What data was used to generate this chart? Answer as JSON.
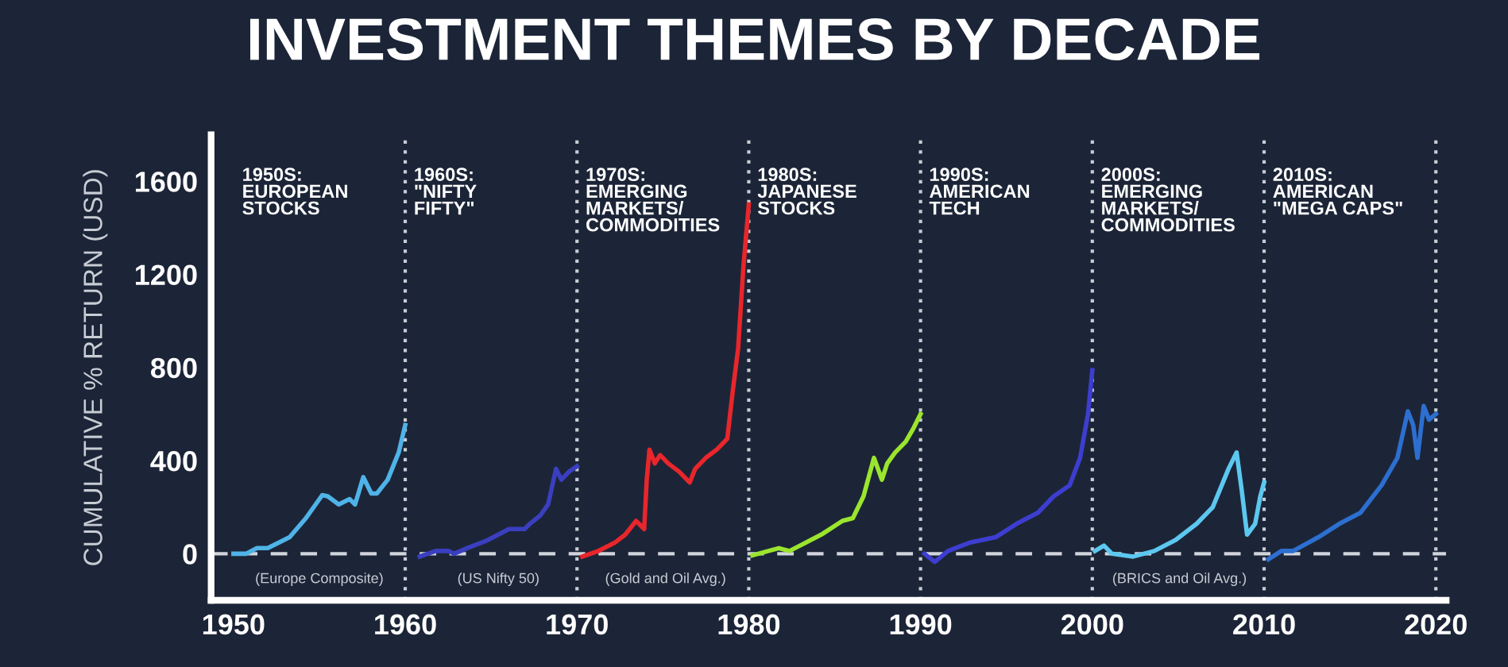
{
  "chart_data": {
    "type": "line",
    "title": "INVESTMENT THEMES BY DECADE",
    "ylabel": "CUMULATIVE % RETURN (USD)",
    "xlim": [
      1948.7,
      2020.6
    ],
    "ylim": [
      -200,
      1800
    ],
    "xticks": [
      1950,
      1960,
      1970,
      1980,
      1990,
      2000,
      2010,
      2020
    ],
    "yticks": [
      0,
      400,
      800,
      1200,
      1600
    ],
    "grid": false,
    "line_style": "solid",
    "marker": "none",
    "series": [
      {
        "name": "(Europe Composite)",
        "color": "#4fb3e8",
        "x": [
          1950,
          1950.73,
          1951.37,
          1952.0,
          1953.27,
          1954.22,
          1955.17,
          1955.49,
          1956.13,
          1956.76,
          1957.08,
          1957.56,
          1958.03,
          1958.35,
          1958.98,
          1959.62,
          1960
        ],
        "values": [
          0,
          0,
          24,
          24,
          71,
          153,
          252,
          247,
          212,
          235,
          212,
          329,
          259,
          259,
          318,
          435,
          553
        ]
      },
      {
        "name": "(US Nifty 50)",
        "color": "#3a3fc0",
        "x": [
          1960.85,
          1961.77,
          1962.53,
          1962.84,
          1963.6,
          1964.82,
          1966.04,
          1966.95,
          1967.26,
          1967.87,
          1968.32,
          1968.78,
          1969.09,
          1969.54,
          1970
        ],
        "values": [
          -12,
          12,
          12,
          0,
          24,
          59,
          106,
          106,
          129,
          165,
          212,
          365,
          318,
          353,
          376
        ]
      },
      {
        "name": "(Gold and Oil Avg.)",
        "color": "#e8262b",
        "x": [
          1970.31,
          1971.25,
          1972.19,
          1972.81,
          1973.44,
          1973.91,
          1974.06,
          1974.22,
          1974.53,
          1974.84,
          1975.31,
          1975.94,
          1976.56,
          1976.88,
          1977.5,
          1978.13,
          1978.75,
          1979.06,
          1979.38,
          1979.69,
          1980
        ],
        "values": [
          -12,
          12,
          47,
          82,
          141,
          106,
          318,
          447,
          388,
          424,
          388,
          353,
          306,
          365,
          412,
          447,
          494,
          694,
          882,
          1235,
          1500
        ]
      },
      {
        "color": "#9be52e",
        "x": [
          1980.22,
          1981.14,
          1981.75,
          1982.37,
          1982.98,
          1984.22,
          1985.45,
          1986.06,
          1986.68,
          1987.29,
          1987.75,
          1988.06,
          1988.52,
          1989.14,
          1989.6,
          1990
        ],
        "values": [
          -7,
          12,
          24,
          12,
          35,
          82,
          141,
          153,
          247,
          412,
          318,
          388,
          435,
          482,
          541,
          600
        ]
      },
      {
        "color": "#3d3ed0",
        "x": [
          1990.22,
          1990.83,
          1991.6,
          1992.83,
          1994.37,
          1995.6,
          1996.83,
          1997.75,
          1998.68,
          1999.29,
          1999.75,
          2000
        ],
        "values": [
          0,
          -35,
          12,
          47,
          71,
          129,
          176,
          247,
          294,
          412,
          600,
          788
        ]
      },
      {
        "name": "(BRICS and Oil Avg.)",
        "color": "#5cc8f0",
        "x": [
          2000.15,
          2000.68,
          2001.14,
          2002.38,
          2003.61,
          2004.85,
          2006.08,
          2007.01,
          2007.93,
          2008.4,
          2008.7,
          2009.01,
          2009.48,
          2009.78,
          2010
        ],
        "values": [
          12,
          35,
          0,
          -12,
          12,
          59,
          129,
          200,
          365,
          435,
          271,
          82,
          129,
          247,
          306
        ]
      },
      {
        "color": "#2d6fd0",
        "x": [
          2010.25,
          2011.01,
          2011.69,
          2013.16,
          2014.39,
          2015.61,
          2016.84,
          2017.76,
          2018.37,
          2018.68,
          2018.93,
          2019.29,
          2019.6,
          2020
        ],
        "values": [
          -24,
          12,
          12,
          71,
          129,
          176,
          294,
          412,
          612,
          553,
          412,
          635,
          576,
          600
        ]
      }
    ],
    "ref_lines": [
      {
        "axis": "y",
        "value": 0,
        "color": "#d0d4dc",
        "line_style": "dashed"
      },
      {
        "axis": "x",
        "value": 1960,
        "color": "#c8ccd4",
        "line_style": "dotted"
      },
      {
        "axis": "x",
        "value": 1970,
        "color": "#c8ccd4",
        "line_style": "dotted"
      },
      {
        "axis": "x",
        "value": 1980,
        "color": "#c8ccd4",
        "line_style": "dotted"
      },
      {
        "axis": "x",
        "value": 1990,
        "color": "#c8ccd4",
        "line_style": "dotted"
      },
      {
        "axis": "x",
        "value": 2000,
        "color": "#c8ccd4",
        "line_style": "dotted"
      },
      {
        "axis": "x",
        "value": 2010,
        "color": "#c8ccd4",
        "line_style": "dotted"
      },
      {
        "axis": "x",
        "value": 2020,
        "color": "#c8ccd4",
        "line_style": "dotted"
      }
    ],
    "annotations": [
      "1950S:\nEUROPEAN\nSTOCKS",
      "1960S:\n\"NIFTY\nFIFTY\"",
      "1970S:\nEMERGING\nMARKETS/\nCOMMODITIES",
      "1980S:\nJAPANESE\nSTOCKS",
      "1990S:\nAMERICAN\nTECH",
      "2000S:\nEMERGING\nMARKETS/\nCOMMODITIES",
      "2010S:\nAMERICAN\n\"MEGA CAPS\""
    ]
  }
}
